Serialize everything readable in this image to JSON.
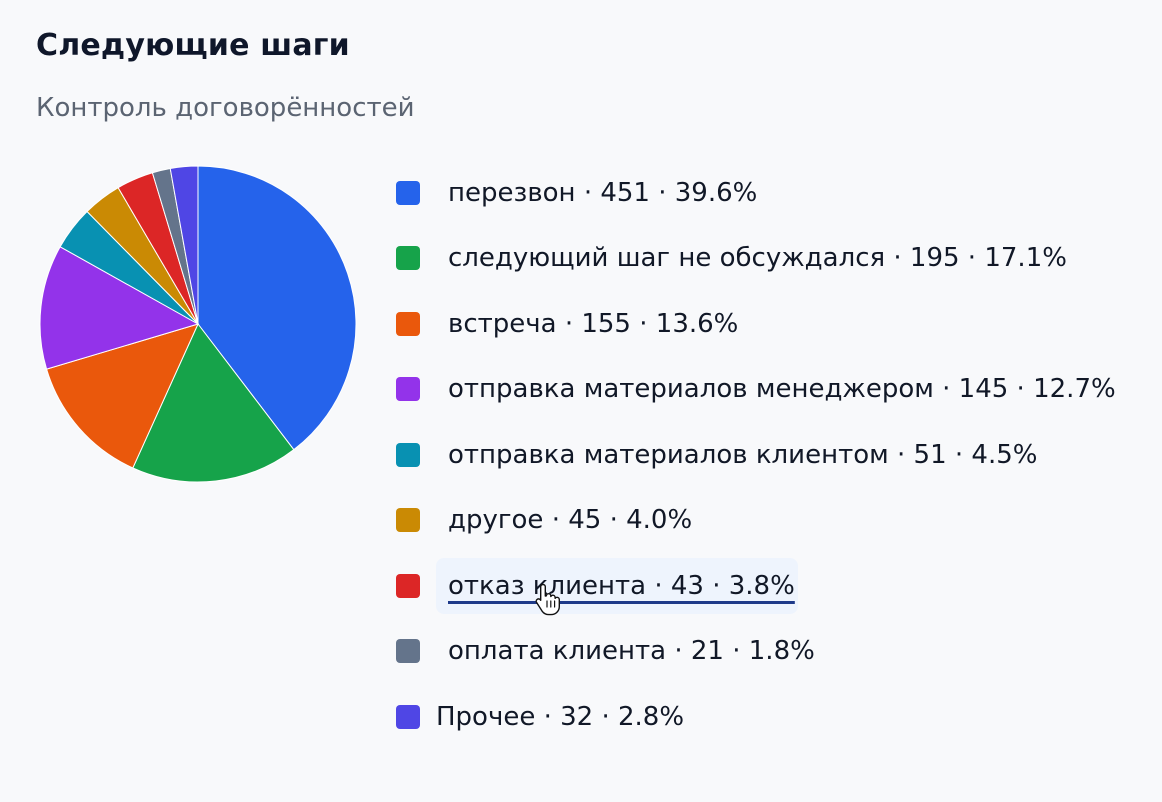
{
  "header": {
    "title": "Следующие шаги",
    "subtitle": "Контроль договорённостей"
  },
  "legend": {
    "items": [
      {
        "label": "перезвон · 451 · 39.6%",
        "color": "#2563eb"
      },
      {
        "label": "следующий шаг не обсуждался · 195 · 17.1%",
        "color": "#16a34a"
      },
      {
        "label": "встреча · 155 · 13.6%",
        "color": "#ea580c"
      },
      {
        "label": "отправка материалов менеджером · 145 · 12.7%",
        "color": "#9333ea"
      },
      {
        "label": "отправка материалов клиентом · 51 · 4.5%",
        "color": "#0891b2"
      },
      {
        "label": "другое · 45 · 4.0%",
        "color": "#ca8a04"
      },
      {
        "label": "отказ клиента · 43 · 3.8%",
        "color": "#dc2626",
        "hovered": true
      },
      {
        "label": "оплата клиента · 21 · 1.8%",
        "color": "#64748b"
      },
      {
        "label": "Прочее · 32 · 2.8%",
        "color": "#4f46e5"
      }
    ]
  },
  "chart_data": {
    "type": "pie",
    "title": "Следующие шаги",
    "subtitle": "Контроль договорённостей",
    "categories": [
      "перезвон",
      "следующий шаг не обсуждался",
      "встреча",
      "отправка материалов менеджером",
      "отправка материалов клиентом",
      "другое",
      "отказ клиента",
      "оплата клиента",
      "Прочее"
    ],
    "values": [
      451,
      195,
      155,
      145,
      51,
      45,
      43,
      21,
      32
    ],
    "percentages": [
      39.6,
      17.1,
      13.6,
      12.7,
      4.5,
      4.0,
      3.8,
      1.8,
      2.8
    ],
    "colors": [
      "#2563eb",
      "#16a34a",
      "#ea580c",
      "#9333ea",
      "#0891b2",
      "#ca8a04",
      "#dc2626",
      "#64748b",
      "#4f46e5"
    ],
    "legend_position": "right"
  }
}
